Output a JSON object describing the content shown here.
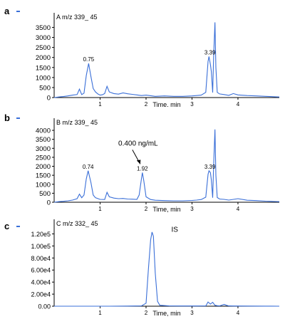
{
  "chart_data": [
    {
      "panel": "a",
      "type": "line",
      "title": "A m/z 339_ 45",
      "xlabel": "Time, min",
      "xlim": [
        0.0,
        4.9
      ],
      "ylim": [
        0,
        3800
      ],
      "xticks": [
        1,
        2,
        3,
        4
      ],
      "yticks": [
        "0",
        "500",
        "1000",
        "1500",
        "2000",
        "2500",
        "3000",
        "3500"
      ],
      "ytick_values": [
        0,
        500,
        1000,
        1500,
        2000,
        2500,
        3000,
        3500
      ],
      "color": "#3a6fd8",
      "x": [
        0.0,
        0.1,
        0.2,
        0.3,
        0.4,
        0.5,
        0.55,
        0.6,
        0.65,
        0.7,
        0.75,
        0.8,
        0.85,
        0.9,
        0.95,
        1.0,
        1.05,
        1.1,
        1.15,
        1.2,
        1.3,
        1.4,
        1.5,
        1.6,
        1.7,
        1.8,
        1.9,
        2.0,
        2.2,
        2.4,
        2.6,
        2.8,
        3.0,
        3.1,
        3.2,
        3.3,
        3.35,
        3.37,
        3.4,
        3.42,
        3.45,
        3.47,
        3.5,
        3.52,
        3.55,
        3.6,
        3.7,
        3.8,
        3.9,
        4.0,
        4.2,
        4.4,
        4.6,
        4.8,
        4.9
      ],
      "y": [
        0,
        30,
        50,
        80,
        120,
        150,
        420,
        150,
        220,
        1100,
        1700,
        1050,
        450,
        280,
        180,
        120,
        140,
        200,
        560,
        280,
        200,
        170,
        230,
        190,
        160,
        130,
        100,
        120,
        60,
        80,
        60,
        60,
        80,
        100,
        120,
        260,
        1800,
        2050,
        1650,
        1300,
        250,
        2000,
        3750,
        1500,
        260,
        180,
        150,
        110,
        200,
        130,
        100,
        80,
        60,
        40,
        30
      ],
      "peak_labels": [
        {
          "x": 0.75,
          "y": 1700,
          "text": "0.75"
        },
        {
          "x": 3.39,
          "y": 2050,
          "text": "3.39"
        }
      ]
    },
    {
      "panel": "b",
      "type": "line",
      "title": "B m/z 339_ 45",
      "xlabel": "Time, min",
      "xlim": [
        0.0,
        4.9
      ],
      "ylim": [
        0,
        4200
      ],
      "xticks": [
        1,
        2,
        3,
        4
      ],
      "yticks": [
        "0",
        "500",
        "1000",
        "1500",
        "2000",
        "2500",
        "3000",
        "3500",
        "4000"
      ],
      "ytick_values": [
        0,
        500,
        1000,
        1500,
        2000,
        2500,
        3000,
        3500,
        4000
      ],
      "color": "#3a6fd8",
      "x": [
        0.0,
        0.1,
        0.2,
        0.3,
        0.4,
        0.5,
        0.55,
        0.6,
        0.65,
        0.7,
        0.74,
        0.8,
        0.85,
        0.9,
        1.0,
        1.1,
        1.15,
        1.2,
        1.3,
        1.4,
        1.5,
        1.6,
        1.7,
        1.8,
        1.85,
        1.9,
        1.92,
        1.95,
        2.0,
        2.1,
        2.2,
        2.4,
        2.6,
        2.8,
        3.0,
        3.1,
        3.2,
        3.3,
        3.35,
        3.37,
        3.4,
        3.42,
        3.45,
        3.47,
        3.5,
        3.52,
        3.55,
        3.6,
        3.7,
        3.8,
        4.0,
        4.2,
        4.4,
        4.6,
        4.8,
        4.9
      ],
      "y": [
        0,
        30,
        50,
        80,
        120,
        200,
        450,
        250,
        400,
        1300,
        1750,
        1100,
        400,
        250,
        160,
        150,
        550,
        300,
        230,
        200,
        210,
        180,
        170,
        160,
        400,
        1300,
        1650,
        1200,
        300,
        150,
        110,
        90,
        80,
        80,
        100,
        120,
        150,
        280,
        1550,
        1750,
        1650,
        1250,
        250,
        2000,
        4050,
        1500,
        260,
        180,
        160,
        120,
        200,
        110,
        90,
        60,
        40,
        30
      ],
      "peak_labels": [
        {
          "x": 0.74,
          "y": 1750,
          "text": "0.74"
        },
        {
          "x": 1.92,
          "y": 1650,
          "text": "1.92"
        },
        {
          "x": 3.39,
          "y": 1750,
          "text": "3.39"
        }
      ],
      "annotation": {
        "text": "0.400 ng/mL",
        "x": 1.92,
        "y": 1650
      }
    },
    {
      "panel": "c",
      "type": "line",
      "title": "C m/z 332_ 45",
      "xlabel": "Time, min",
      "xlim": [
        0.0,
        4.9
      ],
      "ylim": [
        0,
        130000
      ],
      "xticks": [
        1,
        2,
        3,
        4
      ],
      "yticks": [
        "0.00",
        "2.00e4",
        "4.00e4",
        "6.00e4",
        "8.00e4",
        "1.00e5",
        "1.20e5"
      ],
      "ytick_values": [
        0,
        20000,
        40000,
        60000,
        80000,
        100000,
        120000
      ],
      "color": "#3a6fd8",
      "x": [
        0.0,
        0.4,
        0.8,
        1.2,
        1.6,
        1.9,
        2.0,
        2.05,
        2.1,
        2.13,
        2.16,
        2.2,
        2.25,
        2.3,
        2.5,
        2.8,
        3.1,
        3.3,
        3.35,
        3.4,
        3.45,
        3.5,
        3.55,
        3.6,
        3.7,
        3.75,
        3.8,
        3.9,
        4.2,
        4.6,
        4.9
      ],
      "y": [
        0,
        0,
        0,
        0,
        200,
        500,
        5000,
        60000,
        110000,
        123000,
        116000,
        55000,
        8000,
        1500,
        500,
        300,
        300,
        500,
        7000,
        3500,
        6500,
        1500,
        800,
        500,
        3000,
        1500,
        500,
        300,
        200,
        100,
        0
      ],
      "peak_labels": [
        {
          "x": 2.55,
          "y": 120000,
          "text": "IS"
        }
      ]
    }
  ]
}
